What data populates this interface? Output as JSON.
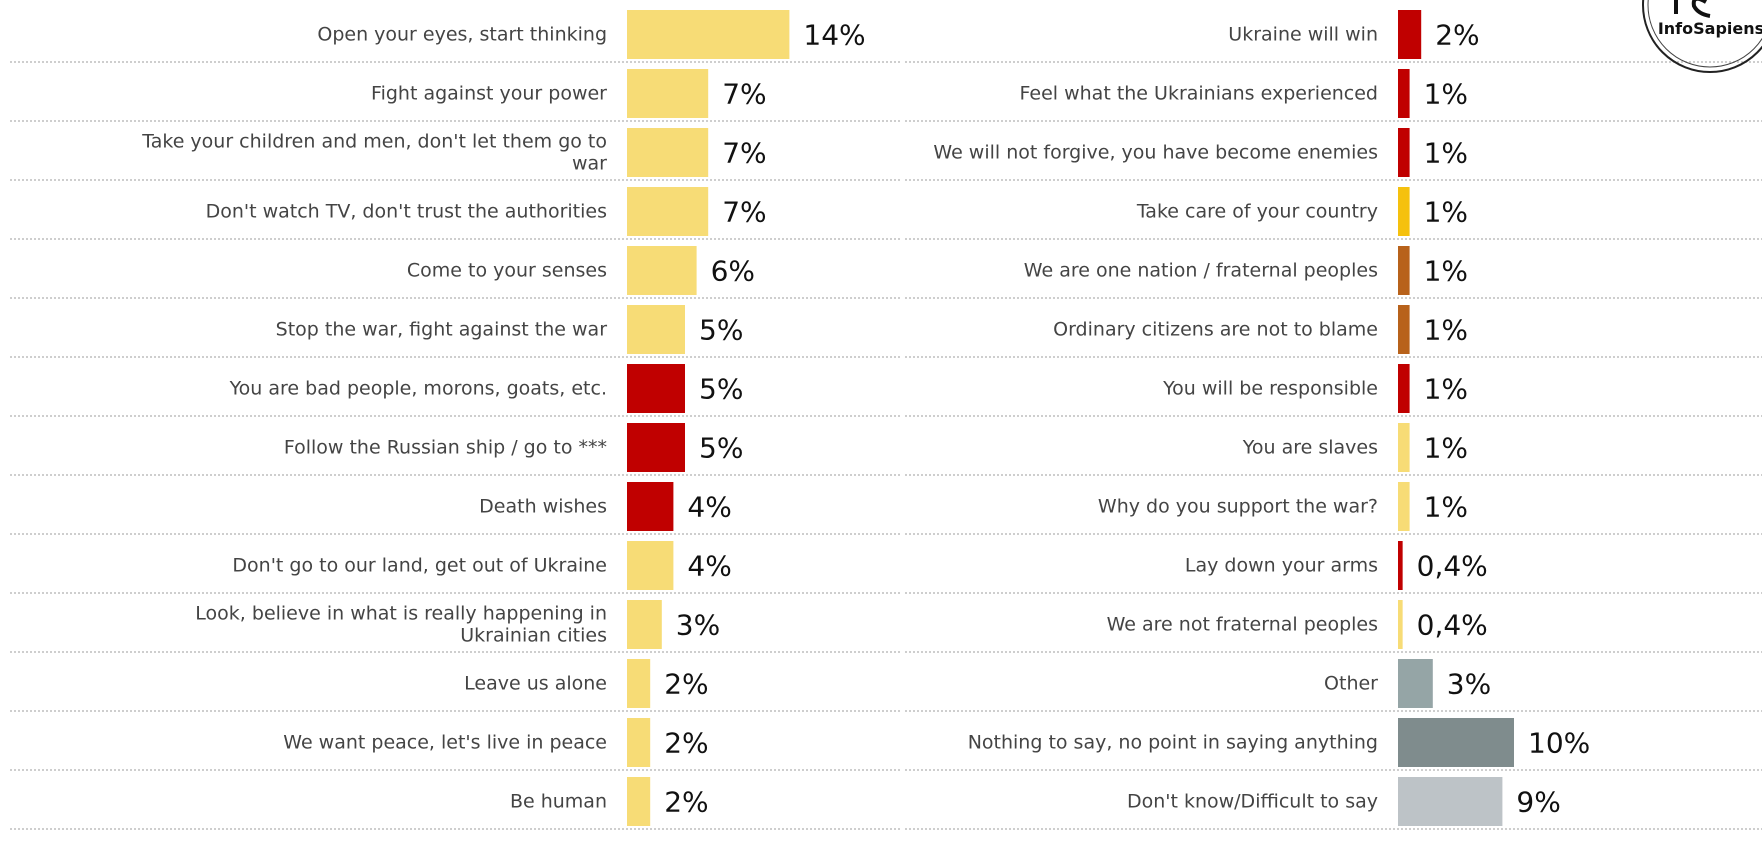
{
  "chart_data": [
    {
      "type": "bar",
      "orientation": "horizontal",
      "xlim": [
        0,
        14
      ],
      "grid": false,
      "categories": [
        "Open your eyes, start thinking",
        "Fight against your power",
        "Take your children and men, don't let them go to war",
        "Don't watch TV, don't trust the authorities",
        "Come to your senses",
        "Stop the war, fight against the war",
        "You are bad people, morons, goats, etc.",
        "Follow the Russian ship / go to ***",
        "Death wishes",
        "Don't go to our land, get out of Ukraine",
        "Look, believe in what is really happening in Ukrainian cities",
        "Leave us alone",
        "We want peace, let's live in peace",
        "Be human"
      ],
      "values": [
        14,
        7,
        7,
        7,
        6,
        5,
        5,
        5,
        4,
        4,
        3,
        2,
        2,
        2
      ],
      "value_labels": [
        "14%",
        "7%",
        "7%",
        "7%",
        "6%",
        "5%",
        "5%",
        "5%",
        "4%",
        "4%",
        "3%",
        "2%",
        "2%",
        "2%"
      ],
      "colors": [
        "#f7dc76",
        "#f7dc76",
        "#f7dc76",
        "#f7dc76",
        "#f7dc76",
        "#f7dc76",
        "#c00000",
        "#c00000",
        "#c00000",
        "#f7dc76",
        "#f7dc76",
        "#f7dc76",
        "#f7dc76",
        "#f7dc76"
      ]
    },
    {
      "type": "bar",
      "orientation": "horizontal",
      "xlim": [
        0,
        14
      ],
      "grid": false,
      "categories": [
        "Ukraine will win",
        "Feel what the Ukrainians experienced",
        "We will not forgive, you have become enemies",
        "Take care of your country",
        "We are one nation / fraternal peoples",
        "Ordinary citizens are not to blame",
        "You will be responsible",
        "You are slaves",
        "Why do you support the war?",
        "Lay down your arms",
        "We are not fraternal peoples",
        "Other",
        "Nothing to say, no point in saying anything",
        "Don't know/Difficult to say"
      ],
      "values": [
        2,
        1,
        1,
        1,
        1,
        1,
        1,
        1,
        1,
        0.4,
        0.4,
        3,
        10,
        9
      ],
      "value_labels": [
        "2%",
        "1%",
        "1%",
        "1%",
        "1%",
        "1%",
        "1%",
        "1%",
        "1%",
        "0,4%",
        "0,4%",
        "3%",
        "10%",
        "9%"
      ],
      "colors": [
        "#c00000",
        "#c00000",
        "#c00000",
        "#f5c10e",
        "#b8621b",
        "#b8621b",
        "#c00000",
        "#f7dc76",
        "#f7dc76",
        "#c00000",
        "#f7dc76",
        "#95a5a6",
        "#7f8c8d",
        "#bdc3c7"
      ]
    }
  ],
  "logo": {
    "text": "InfoSapiens"
  }
}
